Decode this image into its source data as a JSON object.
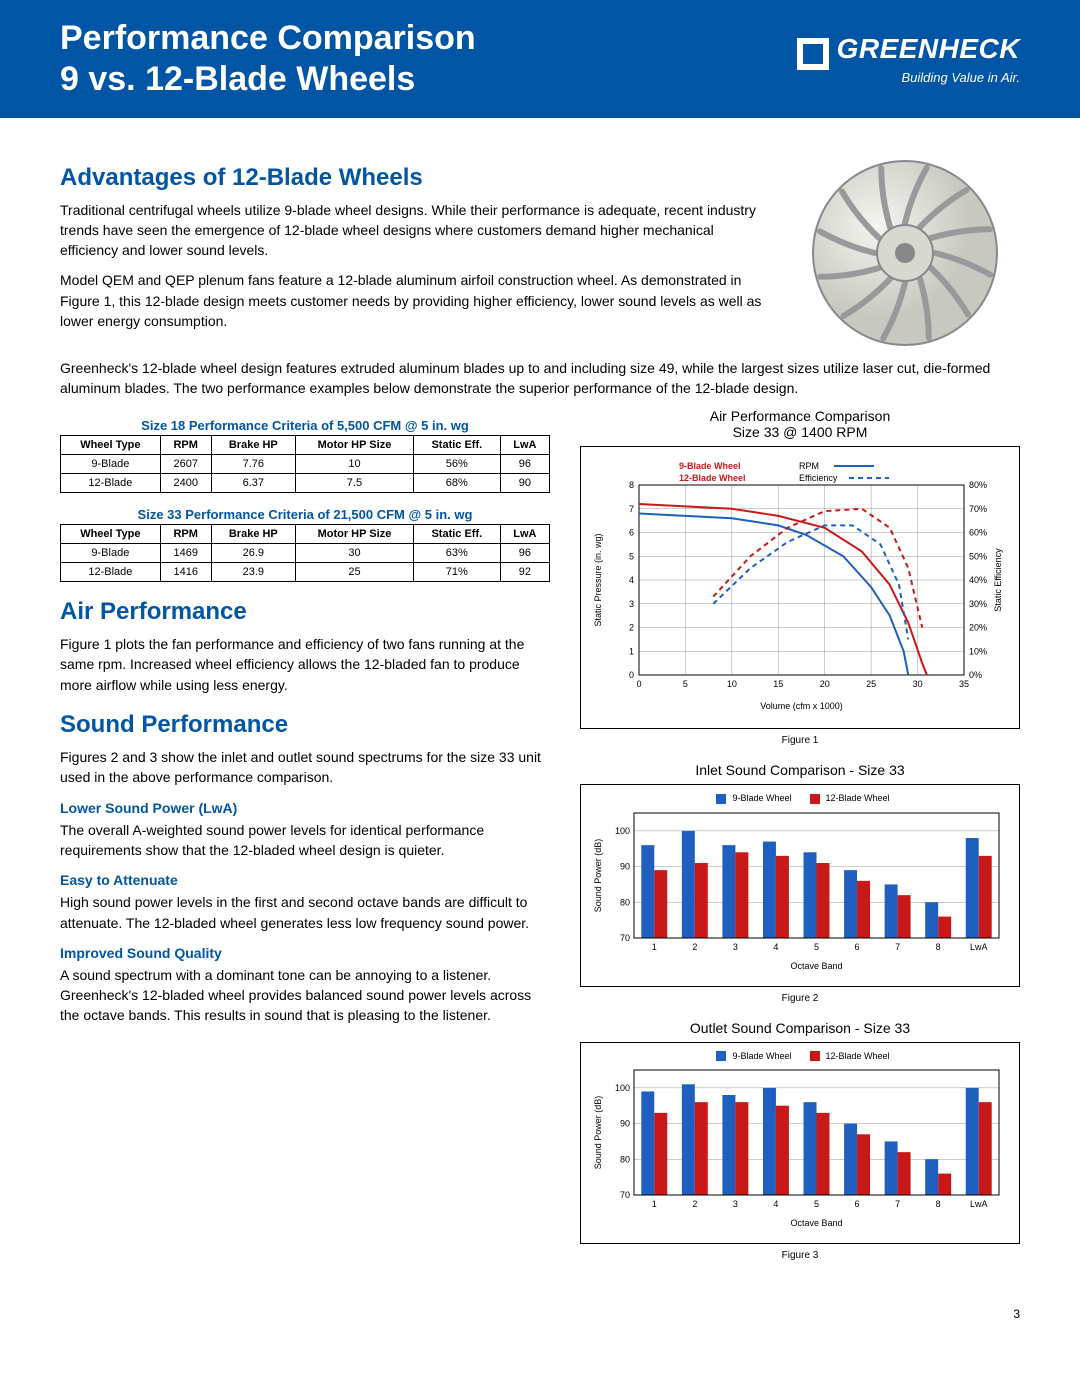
{
  "header": {
    "title_l1": "Performance Comparison",
    "title_l2": "9 vs. 12-Blade Wheels",
    "brand": "GREENHECK",
    "tagline": "Building Value in Air."
  },
  "colors": {
    "brand_blue": "#0055a5",
    "series_blue": "#1f5fbf",
    "series_red": "#c91818",
    "black": "#000000",
    "grid": "#999999"
  },
  "advantages": {
    "heading": "Advantages of 12-Blade Wheels",
    "p1": "Traditional centrifugal wheels utilize 9-blade wheel designs. While their performance is adequate, recent industry trends have seen the emergence of 12-blade wheel designs where customers demand higher mechanical efficiency and lower sound levels.",
    "p2": "Model QEM and QEP plenum fans feature a 12-blade aluminum airfoil construction wheel. As demonstrated in Figure 1, this 12-blade design meets customer needs by providing higher efficiency, lower sound levels as well as lower energy consumption.",
    "p3": "Greenheck's 12-blade wheel design features extruded aluminum blades up to and including size 49, while the largest sizes utilize laser cut, die-formed aluminum blades. The two performance examples below demonstrate the superior performance of the 12-blade design."
  },
  "table1": {
    "title": "Size 18 Performance Criteria of 5,500 CFM @ 5 in. wg",
    "columns": [
      "Wheel Type",
      "RPM",
      "Brake HP",
      "Motor HP Size",
      "Static Eff.",
      "LwA"
    ],
    "rows": [
      [
        "9-Blade",
        "2607",
        "7.76",
        "10",
        "56%",
        "96"
      ],
      [
        "12-Blade",
        "2400",
        "6.37",
        "7.5",
        "68%",
        "90"
      ]
    ]
  },
  "table2": {
    "title": "Size 33 Performance Criteria of 21,500 CFM @ 5 in. wg",
    "columns": [
      "Wheel Type",
      "RPM",
      "Brake HP",
      "Motor HP Size",
      "Static Eff.",
      "LwA"
    ],
    "rows": [
      [
        "9-Blade",
        "1469",
        "26.9",
        "30",
        "63%",
        "96"
      ],
      [
        "12-Blade",
        "1416",
        "23.9",
        "25",
        "71%",
        "92"
      ]
    ]
  },
  "air_perf": {
    "heading": "Air Performance",
    "p": "Figure 1 plots the fan performance and efficiency of two fans running at the same rpm. Increased wheel efficiency allows the 12-bladed fan to produce more airflow while using less energy."
  },
  "sound_perf": {
    "heading": "Sound Performance",
    "p": "Figures 2 and 3 show the inlet and outlet sound spectrums for the size 33 unit used in the above performance comparison.",
    "sub1": "Lower Sound Power (LwA)",
    "p1": "The overall A-weighted sound power levels for identical performance requirements show that the 12-bladed wheel design is quieter.",
    "sub2": "Easy to Attenuate",
    "p2": "High sound power levels in the first and second octave bands are difficult to attenuate. The 12-bladed wheel generates less low frequency sound power.",
    "sub3": "Improved Sound Quality",
    "p3": "A sound spectrum with a dominant tone can be annoying to a listener. Greenheck's 12-bladed wheel provides balanced sound power levels across the octave bands. This results in sound that is pleasing to the listener."
  },
  "chart1": {
    "type": "line",
    "title_l1": "Air Performance Comparison",
    "title_l2": "Size 33 @ 1400 RPM",
    "xlabel": "Volume (cfm x 1000)",
    "ylabel_left": "Static Pressure (in. wg)",
    "ylabel_right": "Static Efficiency",
    "x_ticks": [
      0,
      5,
      10,
      15,
      20,
      25,
      30,
      35
    ],
    "y_ticks_left": [
      0,
      1,
      2,
      3,
      4,
      5,
      6,
      7,
      8
    ],
    "y_ticks_right": [
      "0%",
      "10%",
      "20%",
      "30%",
      "40%",
      "50%",
      "60%",
      "70%",
      "80%"
    ],
    "legend_items": [
      "9-Blade Wheel",
      "12-Blade Wheel",
      "RPM",
      "Efficiency"
    ],
    "legend_colors": [
      "#c91818",
      "#c91818",
      "#1f5fbf",
      "#1f5fbf"
    ],
    "series": {
      "rpm_9": {
        "color": "#1f5fbf",
        "dash": "none",
        "points": [
          [
            0,
            6.8
          ],
          [
            5,
            6.7
          ],
          [
            10,
            6.6
          ],
          [
            15,
            6.3
          ],
          [
            18,
            5.9
          ],
          [
            22,
            5.0
          ],
          [
            25,
            3.7
          ],
          [
            27,
            2.5
          ],
          [
            28.5,
            1.0
          ],
          [
            29,
            0
          ]
        ]
      },
      "rpm_12": {
        "color": "#c91818",
        "dash": "none",
        "points": [
          [
            0,
            7.2
          ],
          [
            5,
            7.1
          ],
          [
            10,
            7.0
          ],
          [
            15,
            6.7
          ],
          [
            20,
            6.2
          ],
          [
            24,
            5.2
          ],
          [
            27,
            3.8
          ],
          [
            29,
            2.2
          ],
          [
            30.5,
            0.5
          ],
          [
            31,
            0
          ]
        ]
      },
      "eff_9": {
        "color": "#1f5fbf",
        "dash": "5,4",
        "points": [
          [
            8,
            3.0
          ],
          [
            12,
            4.5
          ],
          [
            16,
            5.6
          ],
          [
            20,
            6.3
          ],
          [
            23,
            6.3
          ],
          [
            26,
            5.5
          ],
          [
            28,
            3.8
          ],
          [
            29,
            1.5
          ]
        ]
      },
      "eff_12": {
        "color": "#c91818",
        "dash": "5,4",
        "points": [
          [
            8,
            3.3
          ],
          [
            12,
            5.0
          ],
          [
            16,
            6.2
          ],
          [
            20,
            6.9
          ],
          [
            24,
            7.0
          ],
          [
            27,
            6.2
          ],
          [
            29,
            4.5
          ],
          [
            30.5,
            2.0
          ]
        ]
      }
    },
    "caption": "Figure 1"
  },
  "chart2": {
    "type": "bar",
    "title": "Inlet Sound Comparison - Size 33",
    "xlabel": "Octave Band",
    "ylabel": "Sound Power (dB)",
    "categories": [
      "1",
      "2",
      "3",
      "4",
      "5",
      "6",
      "7",
      "8",
      "LwA"
    ],
    "y_ticks": [
      70,
      80,
      90,
      100
    ],
    "ylim": [
      70,
      105
    ],
    "series": [
      {
        "name": "9-Blade Wheel",
        "color": "#1f5fbf",
        "values": [
          96,
          100,
          96,
          97,
          94,
          89,
          85,
          80,
          98
        ]
      },
      {
        "name": "12-Blade Wheel",
        "color": "#c91818",
        "values": [
          89,
          91,
          94,
          93,
          91,
          86,
          82,
          76,
          93
        ]
      }
    ],
    "caption": "Figure 2"
  },
  "chart3": {
    "type": "bar",
    "title": "Outlet Sound Comparison - Size 33",
    "xlabel": "Octave Band",
    "ylabel": "Sound Power (dB)",
    "categories": [
      "1",
      "2",
      "3",
      "4",
      "5",
      "6",
      "7",
      "8",
      "LwA"
    ],
    "y_ticks": [
      70,
      80,
      90,
      100
    ],
    "ylim": [
      70,
      105
    ],
    "series": [
      {
        "name": "9-Blade Wheel",
        "color": "#1f5fbf",
        "values": [
          99,
          101,
          98,
          100,
          96,
          90,
          85,
          80,
          100
        ]
      },
      {
        "name": "12-Blade Wheel",
        "color": "#c91818",
        "values": [
          93,
          96,
          96,
          95,
          93,
          87,
          82,
          76,
          96
        ]
      }
    ],
    "caption": "Figure 3"
  },
  "page_number": "3"
}
